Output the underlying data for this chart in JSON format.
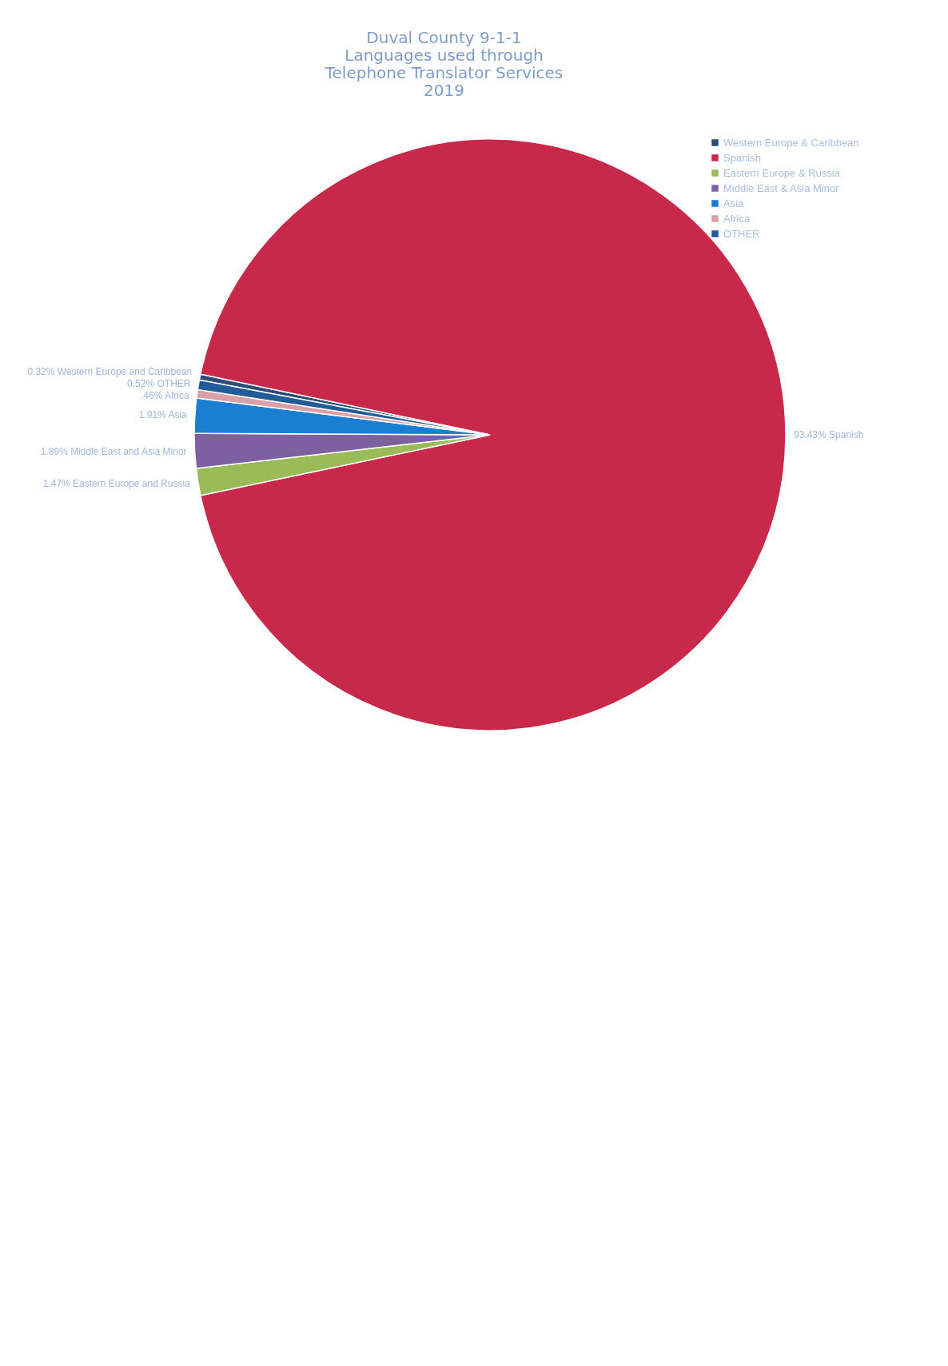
{
  "chart_data": {
    "type": "pie",
    "title": "Duval County 9-1-1\nLanguages used through\nTelephone Translator Services\n2019",
    "categories": [
      "Western Europe & Caribbean",
      "Spanish",
      "Eastern Europe & Russia",
      "Middle East & Asia Minor",
      "Asia",
      "Africa",
      "OTHER"
    ],
    "values": [
      0.32,
      93.43,
      1.47,
      1.89,
      1.91,
      0.46,
      0.52
    ],
    "value_labels": [
      "0.32%\nWestern Europe and Caribbean",
      "93.43%\nSpanish",
      "1.47%\nEastern Europe and Russia",
      "1.89%\nMiddle East and Asia Minor",
      "1.91%\nAsia",
      ".46%\nAfrica",
      "0.52%\nOTHER"
    ],
    "colors": [
      "#2c4d75",
      "#c8284a",
      "#9bbb59",
      "#7d60a0",
      "#1a7fd0",
      "#d9a0a8",
      "#1f5c99"
    ],
    "legend": "right"
  }
}
